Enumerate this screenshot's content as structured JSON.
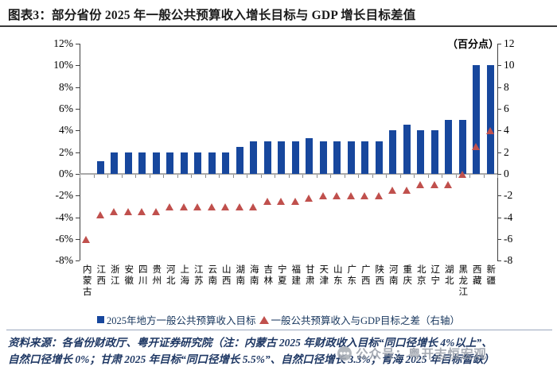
{
  "header": {
    "title": "图表3：部分省份 2025 年一般公共预算收入增长目标与 GDP 增长目标差值"
  },
  "chart_data": {
    "type": "bar",
    "subtype": "bar + triangle-scatter combo, dual axis",
    "title": "部分省份2025年一般公共预算收入增长目标与GDP增长目标差值",
    "unit_label": "（百分点）",
    "categories": [
      "内蒙古",
      "江西",
      "浙江",
      "安徽",
      "四川",
      "贵州",
      "河北",
      "上海",
      "江苏",
      "云南",
      "山西",
      "湖南",
      "海南",
      "吉林",
      "宁夏",
      "福建",
      "甘肃",
      "天津",
      "山东",
      "广东",
      "广西",
      "陕西",
      "河南",
      "重庆",
      "北京",
      "辽宁",
      "湖北",
      "黑龙江",
      "西藏",
      "新疆"
    ],
    "series": [
      {
        "name": "2025年地方一般公共预算收入目标",
        "type": "bar",
        "axis": "left",
        "unit": "%",
        "color": "#17479d",
        "values": [
          0,
          1.2,
          2,
          2,
          2,
          2,
          2,
          2,
          2,
          2,
          2,
          2.5,
          3,
          3,
          3,
          3,
          3.3,
          3,
          3,
          3,
          3,
          3,
          4,
          4.5,
          4,
          4,
          5,
          5,
          10,
          10
        ]
      },
      {
        "name": "一般公共预算收入与GDP目标之差（右轴）",
        "type": "scatter",
        "marker": "triangle",
        "axis": "right",
        "unit": "百分点",
        "color": "#c0504d",
        "values": [
          -6,
          -3.8,
          -3.5,
          -3.5,
          -3.5,
          -3.5,
          -3,
          -3,
          -3,
          -3,
          -3,
          -3,
          -3,
          -2.5,
          -2.5,
          -2.5,
          -2.2,
          -2,
          -2,
          -2,
          -2,
          -2,
          -1.5,
          -1.5,
          -1,
          -1,
          -1,
          0,
          2.5,
          4
        ]
      }
    ],
    "left_axis": {
      "max": 12,
      "min": -8,
      "step": 2,
      "ticks": [
        "12%",
        "10%",
        "8%",
        "6%",
        "4%",
        "2%",
        "0%",
        "-2%",
        "-4%",
        "-6%",
        "-8%"
      ]
    },
    "right_axis": {
      "max": 12,
      "min": -8,
      "step": 2,
      "ticks": [
        "12",
        "10",
        "8",
        "6",
        "4",
        "2",
        "0",
        "-2",
        "-4",
        "-6",
        "-8"
      ]
    },
    "grid": false,
    "legend_position": "bottom"
  },
  "footer": {
    "line1": "资料来源：各省份财政厅、粤开证券研究院（注：内蒙古 2025 年财政收入目标“同口径增长 4%以上”、",
    "line2": "自然口径增长 0%；甘肃 2025 年目标“同口径增长 5.5%”、自然口径增长 3.3%；青海 2025 年目标暂缺）"
  },
  "watermark": {
    "text": "公众号：粤开志恒宏观"
  }
}
